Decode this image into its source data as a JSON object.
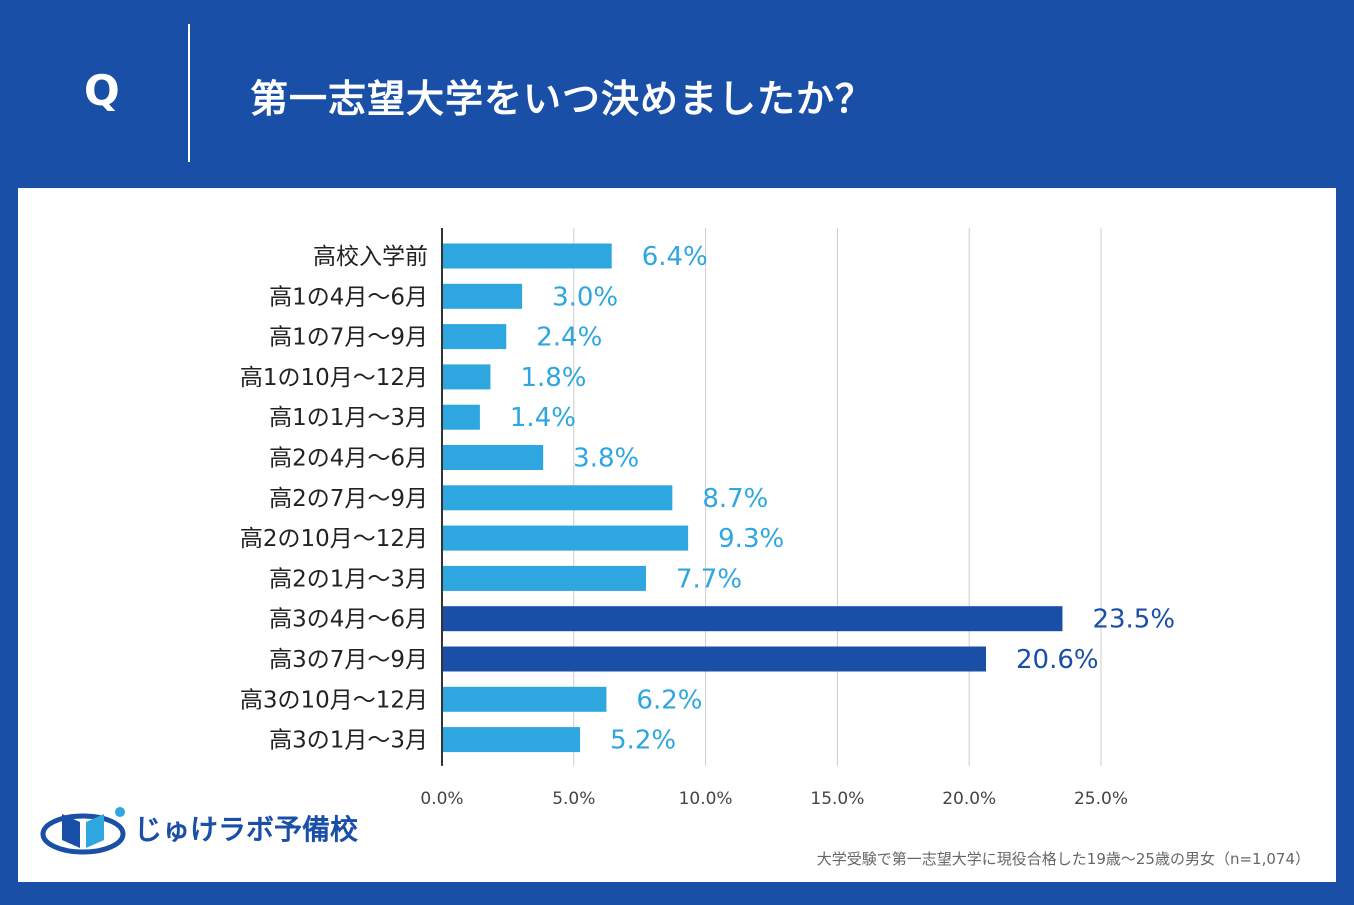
{
  "header": {
    "q_label": "Q",
    "title": "第一志望大学をいつ決めましたか？"
  },
  "footer": {
    "note": "大学受験で第一志望大学に現役合格した19歳〜25歳の男女（n=1,074）",
    "logo_text": "じゅけラボ予備校"
  },
  "colors": {
    "light_bar": "#2ea6e0",
    "dark_bar": "#1a4fa8",
    "background": "#1a4fa8"
  },
  "chart_data": {
    "type": "bar",
    "orientation": "horizontal",
    "categories": [
      "高校入学前",
      "高1の4月〜6月",
      "高1の7月〜9月",
      "高1の10月〜12月",
      "高1の1月〜3月",
      "高2の4月〜6月",
      "高2の7月〜9月",
      "高2の10月〜12月",
      "高2の1月〜3月",
      "高3の4月〜6月",
      "高3の7月〜9月",
      "高3の10月〜12月",
      "高3の1月〜3月"
    ],
    "values": [
      6.4,
      3.0,
      2.4,
      1.8,
      1.4,
      3.8,
      8.7,
      9.3,
      7.7,
      23.5,
      20.6,
      6.2,
      5.2
    ],
    "value_labels": [
      "6.4%",
      "3.0%",
      "2.4%",
      "1.8%",
      "1.4%",
      "3.8%",
      "8.7%",
      "9.3%",
      "7.7%",
      "23.5%",
      "20.6%",
      "6.2%",
      "5.2%"
    ],
    "highlight": [
      false,
      false,
      false,
      false,
      false,
      false,
      false,
      false,
      false,
      true,
      true,
      false,
      false
    ],
    "xlim": [
      0,
      27.5
    ],
    "x_ticks": [
      0,
      5,
      10,
      15,
      20,
      25
    ],
    "x_tick_labels": [
      "0.0%",
      "5.0%",
      "10.0%",
      "15.0%",
      "20.0%",
      "25.0%"
    ],
    "grid": true
  }
}
